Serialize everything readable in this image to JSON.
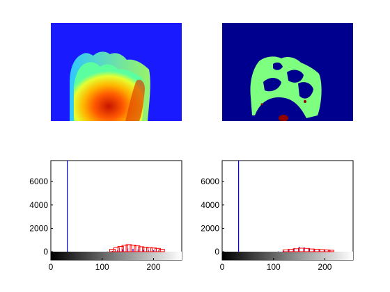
{
  "figure": {
    "panels": [
      {
        "kind": "image",
        "name": "jet-colormap-hand-image",
        "colormap": "jet"
      },
      {
        "kind": "image",
        "name": "segmented-hand-image",
        "colormap": "jet",
        "colors": {
          "background": "#00008f",
          "region": "#7fff7f",
          "spot": "#8f0000"
        }
      }
    ]
  },
  "chart_data": [
    {
      "type": "bar",
      "title": "",
      "xlabel": "",
      "ylabel": "",
      "xlim": [
        0,
        255
      ],
      "ylim": [
        -600,
        7800
      ],
      "xticks": [
        0,
        100,
        200
      ],
      "yticks": [
        0,
        2000,
        4000,
        6000
      ],
      "colorbar": "grayscale",
      "series": [
        {
          "color": "#0000ff",
          "x": [
            32,
            60,
            90,
            110,
            120,
            130,
            140,
            150,
            160,
            170,
            180,
            190,
            200,
            210
          ],
          "values": [
            7800,
            0,
            0,
            20,
            60,
            120,
            200,
            260,
            240,
            200,
            160,
            130,
            110,
            90
          ]
        },
        {
          "color": "#ff0000",
          "x": [
            120,
            128,
            136,
            144,
            152,
            160,
            168,
            176,
            184,
            192,
            200,
            208,
            216
          ],
          "values": [
            200,
            350,
            450,
            550,
            600,
            560,
            500,
            420,
            380,
            350,
            320,
            280,
            200
          ]
        }
      ]
    },
    {
      "type": "bar",
      "title": "",
      "xlabel": "",
      "ylabel": "",
      "xlim": [
        0,
        255
      ],
      "ylim": [
        -600,
        7800
      ],
      "xticks": [
        0,
        100,
        200
      ],
      "yticks": [
        0,
        2000,
        4000,
        6000
      ],
      "colorbar": "grayscale",
      "series": [
        {
          "color": "#0000ff",
          "x": [
            32,
            60,
            90,
            110,
            120,
            130,
            140,
            150,
            160,
            170,
            180,
            190,
            200,
            210
          ],
          "values": [
            7800,
            0,
            0,
            30,
            80,
            180,
            300,
            420,
            380,
            300,
            240,
            180,
            130,
            90
          ]
        },
        {
          "color": "#ff0000",
          "x": [
            124,
            134,
            144,
            154,
            164,
            174,
            184,
            194,
            204,
            212
          ],
          "values": [
            150,
            200,
            250,
            300,
            280,
            230,
            200,
            180,
            150,
            120
          ]
        }
      ]
    }
  ]
}
